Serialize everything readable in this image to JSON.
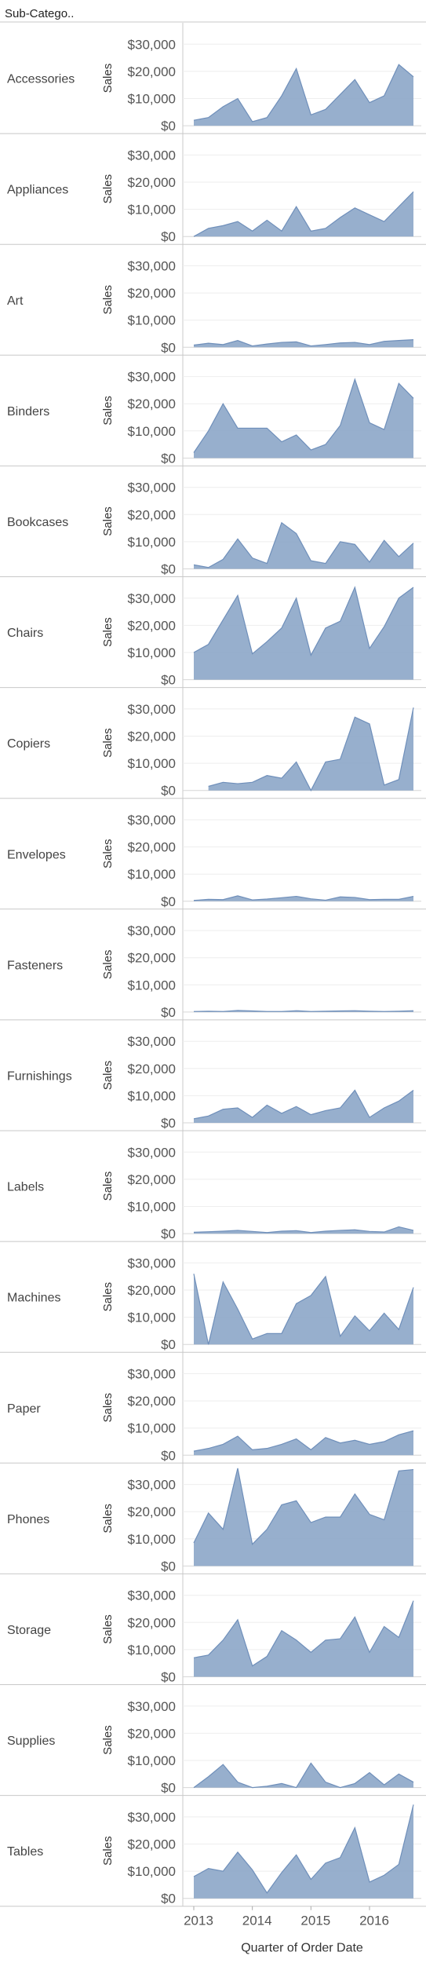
{
  "header": {
    "title": "Sub-Catego.."
  },
  "chart_data": {
    "type": "area",
    "ylabel": "Sales",
    "xlabel": "Quarter of Order Date",
    "ylim": [
      0,
      35000
    ],
    "yticks": [
      0,
      10000,
      20000,
      30000
    ],
    "ytick_labels": [
      "$0",
      "$10,000",
      "$20,000",
      "$30,000"
    ],
    "x_range": [
      2013.0,
      2016.75
    ],
    "xticks": [
      2013,
      2014,
      2015,
      2016
    ],
    "xtick_labels": [
      "2013",
      "2014",
      "2015",
      "2016"
    ],
    "x": [
      2013.0,
      2013.25,
      2013.5,
      2013.75,
      2014.0,
      2014.25,
      2014.5,
      2014.75,
      2015.0,
      2015.25,
      2015.5,
      2015.75,
      2016.0,
      2016.25,
      2016.5,
      2016.75
    ],
    "grid": true,
    "color": "#8ea8c9",
    "line_color": "#6f8fba",
    "series": [
      {
        "name": "Accessories",
        "values": [
          2000,
          3000,
          7000,
          10000,
          1500,
          3000,
          11000,
          21000,
          4000,
          6000,
          11500,
          17000,
          8500,
          11000,
          22500,
          18000
        ]
      },
      {
        "name": "Appliances",
        "values": [
          0,
          3000,
          4000,
          5500,
          2000,
          6000,
          2000,
          11000,
          2000,
          3000,
          7000,
          10500,
          8000,
          5500,
          11000,
          16500
        ]
      },
      {
        "name": "Art",
        "values": [
          800,
          1500,
          1000,
          2500,
          500,
          1200,
          1800,
          2000,
          500,
          1000,
          1600,
          1800,
          1000,
          2200,
          2500,
          2800
        ]
      },
      {
        "name": "Binders",
        "values": [
          2000,
          10000,
          20000,
          11000,
          11000,
          11000,
          6000,
          8500,
          3000,
          5000,
          12000,
          29000,
          13000,
          10500,
          27500,
          22000
        ]
      },
      {
        "name": "Bookcases",
        "values": [
          1500,
          500,
          3500,
          11000,
          4000,
          2000,
          17000,
          13000,
          3000,
          2000,
          10000,
          9000,
          2500,
          10500,
          4500,
          9500
        ]
      },
      {
        "name": "Chairs",
        "values": [
          10000,
          13000,
          22000,
          31000,
          9500,
          14000,
          19000,
          30000,
          9000,
          19000,
          21500,
          34000,
          11500,
          19500,
          30000,
          34000
        ]
      },
      {
        "name": "Copiers",
        "values": [
          null,
          1500,
          3000,
          2500,
          3000,
          5500,
          4500,
          10500,
          0,
          10500,
          11500,
          27000,
          24500,
          2000,
          4000,
          30500
        ]
      },
      {
        "name": "Envelopes",
        "values": [
          300,
          700,
          600,
          2000,
          500,
          800,
          1300,
          1800,
          900,
          400,
          1600,
          1400,
          600,
          700,
          700,
          1800
        ]
      },
      {
        "name": "Fasteners",
        "values": [
          200,
          300,
          200,
          600,
          400,
          200,
          200,
          500,
          200,
          300,
          400,
          500,
          300,
          200,
          300,
          500
        ]
      },
      {
        "name": "Furnishings",
        "values": [
          1500,
          2500,
          5000,
          5500,
          2000,
          6500,
          3500,
          6000,
          3000,
          4500,
          5500,
          12000,
          2000,
          5500,
          8000,
          12000
        ]
      },
      {
        "name": "Labels",
        "values": [
          500,
          700,
          900,
          1200,
          800,
          400,
          900,
          1100,
          400,
          900,
          1200,
          1400,
          800,
          600,
          2500,
          1200
        ]
      },
      {
        "name": "Machines",
        "values": [
          26000,
          0,
          23000,
          13000,
          2000,
          4000,
          4000,
          15000,
          18000,
          25000,
          3000,
          10500,
          5000,
          11500,
          5500,
          21000
        ]
      },
      {
        "name": "Paper",
        "values": [
          1500,
          2500,
          4000,
          7000,
          2000,
          2500,
          4000,
          6000,
          2000,
          6500,
          4500,
          5500,
          4000,
          5000,
          7500,
          9000
        ]
      },
      {
        "name": "Phones",
        "values": [
          8500,
          19500,
          13500,
          36000,
          8000,
          13500,
          22500,
          24000,
          16000,
          18000,
          18000,
          26500,
          19000,
          17000,
          35000,
          35500
        ]
      },
      {
        "name": "Storage",
        "values": [
          7000,
          8000,
          13500,
          21000,
          4000,
          7500,
          17000,
          13500,
          9000,
          13500,
          14000,
          22000,
          9000,
          18500,
          14500,
          28000
        ]
      },
      {
        "name": "Supplies",
        "values": [
          0,
          4000,
          8500,
          2000,
          0,
          500,
          1500,
          0,
          9000,
          2000,
          0,
          1500,
          5500,
          1000,
          5000,
          2000
        ]
      },
      {
        "name": "Tables",
        "values": [
          8000,
          11000,
          10000,
          17000,
          10500,
          2000,
          9500,
          16000,
          7000,
          13000,
          15000,
          26000,
          6000,
          8500,
          12500,
          34500
        ]
      }
    ]
  }
}
